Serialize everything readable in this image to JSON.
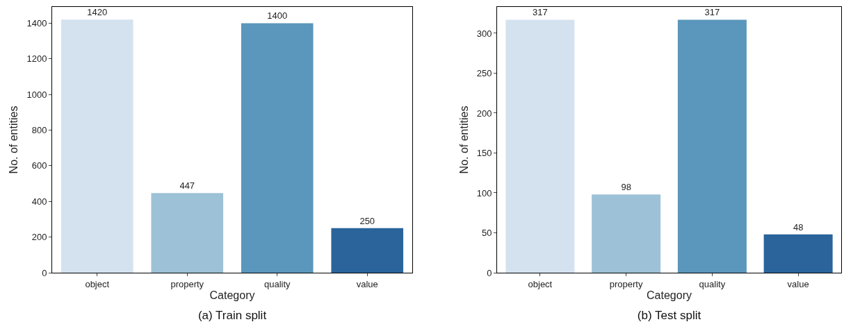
{
  "chart_data": [
    {
      "type": "bar",
      "title": "(a) Train split",
      "xlabel": "Category",
      "ylabel": "No. of entities",
      "categories": [
        "object",
        "property",
        "quality",
        "value"
      ],
      "values": [
        1420,
        447,
        1400,
        250
      ],
      "colors": [
        "#d4e2f0",
        "#9dc2d7",
        "#5b96bc",
        "#2a649b"
      ],
      "ylim": [
        0,
        1491
      ],
      "yticks": [
        0,
        200,
        400,
        600,
        800,
        1000,
        1200,
        1400
      ],
      "data_labels": true
    },
    {
      "type": "bar",
      "title": "(b) Test split",
      "xlabel": "Category",
      "ylabel": "No. of entities",
      "categories": [
        "object",
        "property",
        "quality",
        "value"
      ],
      "values": [
        317,
        98,
        317,
        48
      ],
      "colors": [
        "#d4e2f0",
        "#9dc2d7",
        "#5b96bc",
        "#2a649b"
      ],
      "ylim": [
        0,
        333
      ],
      "yticks": [
        0,
        50,
        100,
        150,
        200,
        250,
        300
      ],
      "data_labels": true
    }
  ]
}
